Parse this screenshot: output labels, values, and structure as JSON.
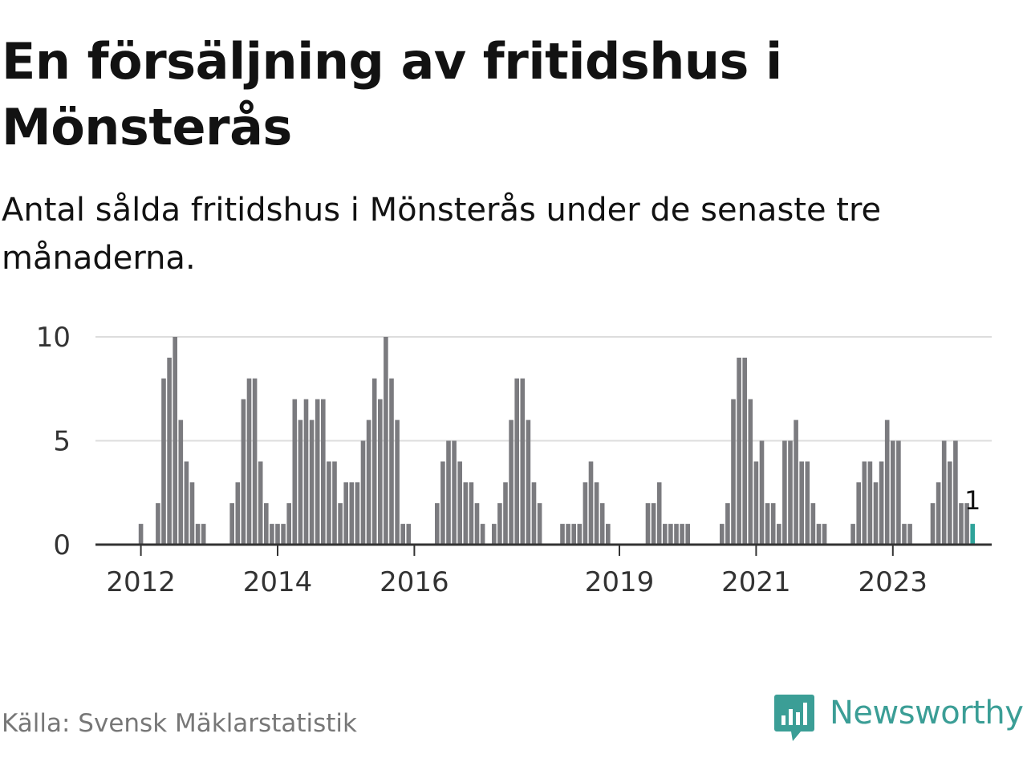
{
  "header": {
    "title": "En försäljning av fritidshus i Mönsterås",
    "subtitle": "Antal sålda fritidshus i Mönsterås under de senaste tre månaderna."
  },
  "footer": {
    "source": "Källa: Svensk Mäklarstatistik",
    "brand": "Newsworthy"
  },
  "colors": {
    "bar": "#7b7b7f",
    "highlight": "#2fa39a",
    "grid": "#dddddd",
    "axis": "#333333",
    "brand": "#3b9e96"
  },
  "chart_data": {
    "type": "bar",
    "title": "",
    "xlabel": "",
    "ylabel": "",
    "ylim": [
      0,
      10
    ],
    "yticks": [
      0,
      5,
      10
    ],
    "grid": true,
    "start_month": "2011-10",
    "x_tick_labels": [
      {
        "label": "2012",
        "month": "2012-01"
      },
      {
        "label": "2014",
        "month": "2014-01"
      },
      {
        "label": "2016",
        "month": "2016-01"
      },
      {
        "label": "2019",
        "month": "2019-01"
      },
      {
        "label": "2021",
        "month": "2021-01"
      },
      {
        "label": "2023",
        "month": "2023-01"
      }
    ],
    "values": [
      0,
      0,
      0,
      1,
      0,
      0,
      2,
      8,
      9,
      10,
      6,
      4,
      3,
      1,
      1,
      0,
      0,
      0,
      0,
      2,
      3,
      7,
      8,
      8,
      4,
      2,
      1,
      1,
      1,
      2,
      7,
      6,
      7,
      6,
      7,
      7,
      4,
      4,
      2,
      3,
      3,
      3,
      5,
      6,
      8,
      7,
      10,
      8,
      6,
      1,
      1,
      0,
      0,
      0,
      0,
      2,
      4,
      5,
      5,
      4,
      3,
      3,
      2,
      1,
      0,
      1,
      2,
      3,
      6,
      8,
      8,
      6,
      3,
      2,
      0,
      0,
      0,
      1,
      1,
      1,
      1,
      3,
      4,
      3,
      2,
      1,
      0,
      0,
      0,
      0,
      0,
      0,
      2,
      2,
      3,
      1,
      1,
      1,
      1,
      1,
      0,
      0,
      0,
      0,
      0,
      1,
      2,
      7,
      9,
      9,
      7,
      4,
      5,
      2,
      2,
      1,
      5,
      5,
      6,
      4,
      4,
      2,
      1,
      1,
      0,
      0,
      0,
      0,
      1,
      3,
      4,
      4,
      3,
      4,
      6,
      5,
      5,
      1,
      1,
      0,
      0,
      0,
      2,
      3,
      5,
      4,
      5,
      2,
      2,
      1
    ],
    "highlight_last": true,
    "last_value_label": "1"
  }
}
